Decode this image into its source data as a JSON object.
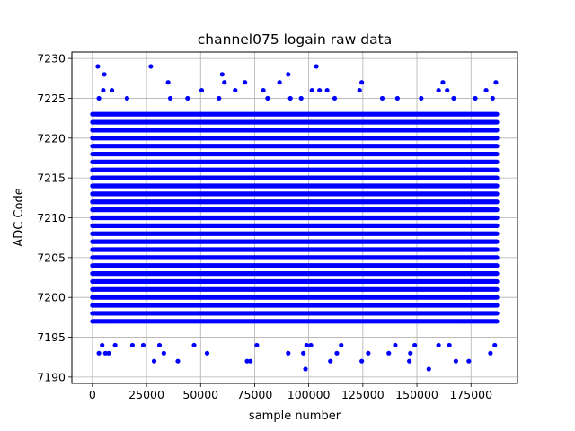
{
  "chart_data": {
    "type": "scatter",
    "title": "channel075 logain raw data",
    "xlabel": "sample number",
    "ylabel": "ADC Code",
    "xlim": [
      -9500,
      196500
    ],
    "ylim": [
      7189.2,
      7230.8
    ],
    "x_ticks": [
      0,
      25000,
      50000,
      75000,
      100000,
      125000,
      150000,
      175000
    ],
    "y_ticks": [
      7190,
      7195,
      7200,
      7205,
      7210,
      7215,
      7220,
      7225,
      7230
    ],
    "grid": true,
    "marker_color": "#0000ff",
    "x_range": [
      0,
      187000
    ],
    "dense_band": [
      7197,
      7223
    ],
    "points": [
      {
        "x": 2500,
        "y": 7229
      },
      {
        "x": 27000,
        "y": 7229
      },
      {
        "x": 103500,
        "y": 7229
      },
      {
        "x": 5500,
        "y": 7228
      },
      {
        "x": 60000,
        "y": 7228
      },
      {
        "x": 90500,
        "y": 7228
      },
      {
        "x": 35000,
        "y": 7227
      },
      {
        "x": 61000,
        "y": 7227
      },
      {
        "x": 70500,
        "y": 7227
      },
      {
        "x": 86500,
        "y": 7227
      },
      {
        "x": 124500,
        "y": 7227
      },
      {
        "x": 162000,
        "y": 7227
      },
      {
        "x": 186500,
        "y": 7227
      },
      {
        "x": 5000,
        "y": 7226
      },
      {
        "x": 9000,
        "y": 7226
      },
      {
        "x": 50500,
        "y": 7226
      },
      {
        "x": 66000,
        "y": 7226
      },
      {
        "x": 79000,
        "y": 7226
      },
      {
        "x": 101500,
        "y": 7226
      },
      {
        "x": 105000,
        "y": 7226
      },
      {
        "x": 108500,
        "y": 7226
      },
      {
        "x": 123500,
        "y": 7226
      },
      {
        "x": 160000,
        "y": 7226
      },
      {
        "x": 164000,
        "y": 7226
      },
      {
        "x": 182000,
        "y": 7226
      },
      {
        "x": 3000,
        "y": 7225
      },
      {
        "x": 16000,
        "y": 7225
      },
      {
        "x": 36000,
        "y": 7225
      },
      {
        "x": 44000,
        "y": 7225
      },
      {
        "x": 58500,
        "y": 7225
      },
      {
        "x": 81000,
        "y": 7225
      },
      {
        "x": 91500,
        "y": 7225
      },
      {
        "x": 96500,
        "y": 7225
      },
      {
        "x": 112000,
        "y": 7225
      },
      {
        "x": 134000,
        "y": 7225
      },
      {
        "x": 141000,
        "y": 7225
      },
      {
        "x": 152000,
        "y": 7225
      },
      {
        "x": 167000,
        "y": 7225
      },
      {
        "x": 177000,
        "y": 7225
      },
      {
        "x": 185000,
        "y": 7225
      },
      {
        "x": 3000,
        "y": 7193
      },
      {
        "x": 6000,
        "y": 7193
      },
      {
        "x": 7500,
        "y": 7193
      },
      {
        "x": 33000,
        "y": 7193
      },
      {
        "x": 53000,
        "y": 7193
      },
      {
        "x": 90500,
        "y": 7193
      },
      {
        "x": 97500,
        "y": 7193
      },
      {
        "x": 113000,
        "y": 7193
      },
      {
        "x": 127500,
        "y": 7193
      },
      {
        "x": 137000,
        "y": 7193
      },
      {
        "x": 147000,
        "y": 7193
      },
      {
        "x": 184000,
        "y": 7193
      },
      {
        "x": 28500,
        "y": 7192
      },
      {
        "x": 39500,
        "y": 7192
      },
      {
        "x": 71500,
        "y": 7192
      },
      {
        "x": 73000,
        "y": 7192
      },
      {
        "x": 110000,
        "y": 7192
      },
      {
        "x": 124500,
        "y": 7192
      },
      {
        "x": 146500,
        "y": 7192
      },
      {
        "x": 168000,
        "y": 7192
      },
      {
        "x": 174000,
        "y": 7192
      },
      {
        "x": 98500,
        "y": 7191
      },
      {
        "x": 155500,
        "y": 7191
      },
      {
        "x": 4500,
        "y": 7194
      },
      {
        "x": 10500,
        "y": 7194
      },
      {
        "x": 18500,
        "y": 7194
      },
      {
        "x": 23500,
        "y": 7194
      },
      {
        "x": 31000,
        "y": 7194
      },
      {
        "x": 47000,
        "y": 7194
      },
      {
        "x": 76000,
        "y": 7194
      },
      {
        "x": 99000,
        "y": 7194
      },
      {
        "x": 101000,
        "y": 7194
      },
      {
        "x": 115000,
        "y": 7194
      },
      {
        "x": 140000,
        "y": 7194
      },
      {
        "x": 149000,
        "y": 7194
      },
      {
        "x": 160000,
        "y": 7194
      },
      {
        "x": 165000,
        "y": 7194
      },
      {
        "x": 186000,
        "y": 7194
      }
    ]
  }
}
